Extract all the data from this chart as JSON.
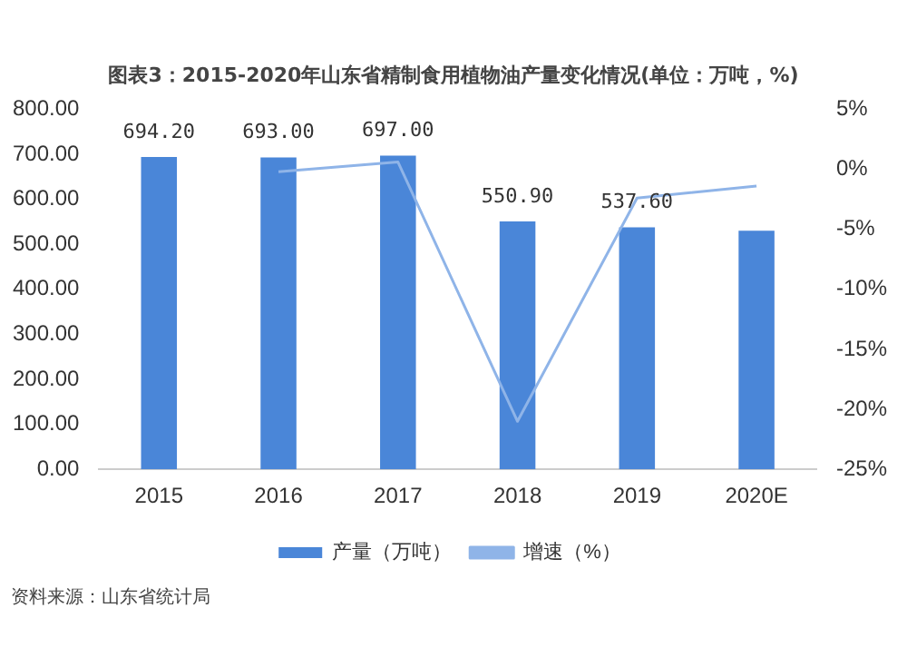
{
  "chart_data": {
    "type": "bar",
    "title": "图表3：2015-2020年山东省精制食用植物油产量变化情况(单位：万吨，%)",
    "categories": [
      "2015",
      "2016",
      "2017",
      "2018",
      "2019",
      "2020E"
    ],
    "series": [
      {
        "name": "产量（万吨）",
        "color": "#4a86d8",
        "values": [
          694.2,
          693.0,
          697.0,
          550.9,
          537.6,
          530
        ],
        "value_labels": [
          "694.20",
          "693.00",
          "697.00",
          "550.90",
          "537.60",
          null
        ]
      },
      {
        "name": "增速（%）",
        "type": "line",
        "axis": "y2",
        "color": "#8fb4e8",
        "values": [
          null,
          -0.2,
          0.6,
          -21.0,
          -2.4,
          -1.4
        ]
      }
    ],
    "ylim": [
      0,
      800
    ],
    "yticks": [
      {
        "value": 0,
        "label": "0.00"
      },
      {
        "value": 100,
        "label": "100.00"
      },
      {
        "value": 200,
        "label": "200.00"
      },
      {
        "value": 300,
        "label": "300.00"
      },
      {
        "value": 400,
        "label": "400.00"
      },
      {
        "value": 500,
        "label": "500.00"
      },
      {
        "value": 600,
        "label": "600.00"
      },
      {
        "value": 700,
        "label": "700.00"
      },
      {
        "value": 800,
        "label": "800.00"
      }
    ],
    "y2lim": [
      -25,
      5
    ],
    "y2ticks": [
      {
        "value": -25,
        "label": "-25%"
      },
      {
        "value": -20,
        "label": "-20%"
      },
      {
        "value": -15,
        "label": "-15%"
      },
      {
        "value": -10,
        "label": "-10%"
      },
      {
        "value": -5,
        "label": "-5%"
      },
      {
        "value": 0,
        "label": "0%"
      },
      {
        "value": 5,
        "label": "5%"
      }
    ],
    "grid": false,
    "legend": "bottom",
    "marker": "none",
    "annotations": [
      "资料来源：山东省统计局"
    ]
  }
}
